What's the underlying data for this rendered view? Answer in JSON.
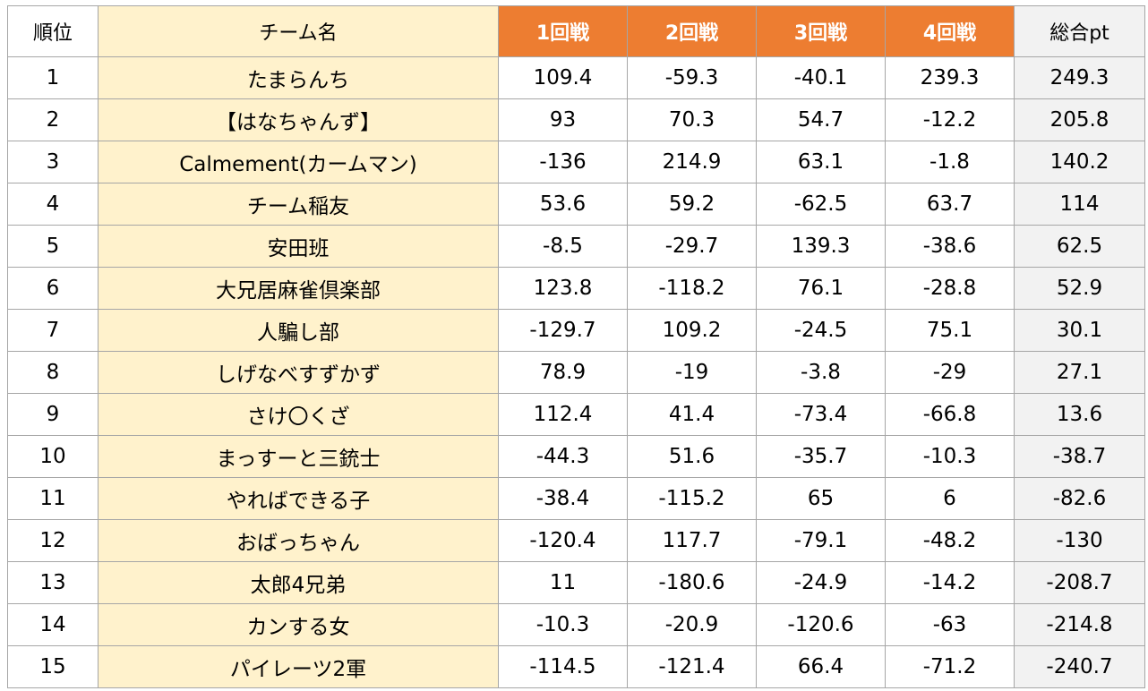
{
  "colors": {
    "header_round_bg": "#ed7d31",
    "team_bg": "#fff2cc",
    "total_bg": "#f2f2f2",
    "grid": "#a6a6a6"
  },
  "headers": {
    "rank": "順位",
    "team": "チーム名",
    "round1": "1回戦",
    "round2": "2回戦",
    "round3": "3回戦",
    "round4": "4回戦",
    "total": "総合pt"
  },
  "rows": [
    {
      "rank": "1",
      "team": "たまらんち",
      "r1": "109.4",
      "r2": "-59.3",
      "r3": "-40.1",
      "r4": "239.3",
      "total": "249.3"
    },
    {
      "rank": "2",
      "team": "【はなちゃんず】",
      "r1": "93",
      "r2": "70.3",
      "r3": "54.7",
      "r4": "-12.2",
      "total": "205.8"
    },
    {
      "rank": "3",
      "team": "Calmement(カームマン)",
      "r1": "-136",
      "r2": "214.9",
      "r3": "63.1",
      "r4": "-1.8",
      "total": "140.2"
    },
    {
      "rank": "4",
      "team": "チーム稲友",
      "r1": "53.6",
      "r2": "59.2",
      "r3": "-62.5",
      "r4": "63.7",
      "total": "114"
    },
    {
      "rank": "5",
      "team": "安田班",
      "r1": "-8.5",
      "r2": "-29.7",
      "r3": "139.3",
      "r4": "-38.6",
      "total": "62.5"
    },
    {
      "rank": "6",
      "team": "大兄居麻雀倶楽部",
      "r1": "123.8",
      "r2": "-118.2",
      "r3": "76.1",
      "r4": "-28.8",
      "total": "52.9"
    },
    {
      "rank": "7",
      "team": "人騙し部",
      "r1": "-129.7",
      "r2": "109.2",
      "r3": "-24.5",
      "r4": "75.1",
      "total": "30.1"
    },
    {
      "rank": "8",
      "team": "しげなべすずかず",
      "r1": "78.9",
      "r2": "-19",
      "r3": "-3.8",
      "r4": "-29",
      "total": "27.1"
    },
    {
      "rank": "9",
      "team": "さけ〇くざ",
      "r1": "112.4",
      "r2": "41.4",
      "r3": "-73.4",
      "r4": "-66.8",
      "total": "13.6"
    },
    {
      "rank": "10",
      "team": "まっすーと三銃士",
      "r1": "-44.3",
      "r2": "51.6",
      "r3": "-35.7",
      "r4": "-10.3",
      "total": "-38.7"
    },
    {
      "rank": "11",
      "team": "やればできる子",
      "r1": "-38.4",
      "r2": "-115.2",
      "r3": "65",
      "r4": "6",
      "total": "-82.6"
    },
    {
      "rank": "12",
      "team": "おばっちゃん",
      "r1": "-120.4",
      "r2": "117.7",
      "r3": "-79.1",
      "r4": "-48.2",
      "total": "-130"
    },
    {
      "rank": "13",
      "team": "太郎4兄弟",
      "r1": "11",
      "r2": "-180.6",
      "r3": "-24.9",
      "r4": "-14.2",
      "total": "-208.7"
    },
    {
      "rank": "14",
      "team": "カンする女",
      "r1": "-10.3",
      "r2": "-20.9",
      "r3": "-120.6",
      "r4": "-63",
      "total": "-214.8"
    },
    {
      "rank": "15",
      "team": "パイレーツ2軍",
      "r1": "-114.5",
      "r2": "-121.4",
      "r3": "66.4",
      "r4": "-71.2",
      "total": "-240.7"
    }
  ]
}
